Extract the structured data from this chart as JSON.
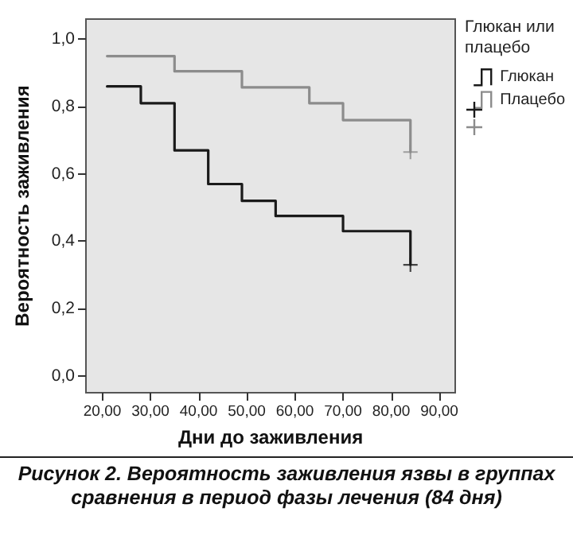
{
  "chart_data": {
    "type": "step",
    "xlabel": "Дни до заживления",
    "ylabel": "Вероятность заживления",
    "legend_title": "Глюкан или плацебо",
    "legend": "right",
    "grid": false,
    "line_style": "solid",
    "marker": "none",
    "xlim": [
      16.6,
      93.3
    ],
    "ylim": [
      -0.05,
      1.06
    ],
    "xticks": [
      {
        "value": 20,
        "label": "20,00"
      },
      {
        "value": 30,
        "label": "30,00"
      },
      {
        "value": 40,
        "label": "40,00"
      },
      {
        "value": 50,
        "label": "50,00"
      },
      {
        "value": 60,
        "label": "60,00"
      },
      {
        "value": 70,
        "label": "70,00"
      },
      {
        "value": 80,
        "label": "80,00"
      },
      {
        "value": 90,
        "label": "90,00"
      }
    ],
    "yticks": [
      {
        "value": 0,
        "label": "0,0"
      },
      {
        "value": 0.2,
        "label": "0,2"
      },
      {
        "value": 0.4,
        "label": "0,4"
      },
      {
        "value": 0.6,
        "label": "0,6"
      },
      {
        "value": 0.8,
        "label": "0,8"
      },
      {
        "value": 1,
        "label": "1,0"
      }
    ],
    "series": [
      {
        "name": "Глюкан",
        "color": "#1a1a1a",
        "x": [
          21,
          28,
          35,
          42,
          49,
          56,
          70,
          84,
          84
        ],
        "values": [
          0.86,
          0.81,
          0.67,
          0.57,
          0.52,
          0.475,
          0.43,
          0.43,
          0.33
        ]
      },
      {
        "name": "Плацебо",
        "color": "#8c8c8c",
        "x": [
          21,
          35,
          49,
          63,
          70,
          84,
          84
        ],
        "values": [
          0.95,
          0.905,
          0.857,
          0.81,
          0.76,
          0.76,
          0.665
        ]
      },
      {
        "type": "scatter",
        "marker": "cross",
        "color": "#1a1a1a",
        "x": [
          84
        ],
        "values": [
          0.33
        ]
      },
      {
        "type": "scatter",
        "marker": "cross",
        "color": "#8c8c8c",
        "x": [
          84
        ],
        "values": [
          0.665
        ]
      }
    ],
    "annotations": [
      "Рисунок 2. Вероятность заживления язвы в группах сравнения в период фазы лечения (84 дня)"
    ]
  }
}
